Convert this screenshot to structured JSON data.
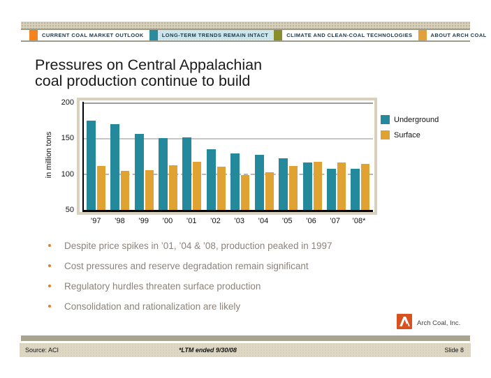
{
  "header": {
    "tabs": [
      {
        "label": "CURRENT COAL MARKET OUTLOOK",
        "color": "#F5821F",
        "active": false
      },
      {
        "label": "LONG-TERM TRENDS REMAIN INTACT",
        "color": "#2C8C9E",
        "active": true
      },
      {
        "label": "CLIMATE AND CLEAN-COAL TECHNOLOGIES",
        "color": "#8A8E2A",
        "active": false
      },
      {
        "label": "ABOUT ARCH COAL",
        "color": "#E2A23B",
        "active": false
      }
    ],
    "active_tab_bg": "#C9E3EA"
  },
  "title": {
    "line1": "Pressures on Central Appalachian",
    "line2": "coal production continue to build"
  },
  "chart_data": {
    "type": "bar",
    "title": "",
    "ylabel": "in million tons",
    "xlabel": "",
    "ylim": [
      50,
      200
    ],
    "yticks": [
      200,
      150,
      100,
      50
    ],
    "grid": {
      "solid_at": [
        200,
        150
      ],
      "dashed_at": [
        100
      ]
    },
    "legend_position": "right",
    "categories": [
      "’97",
      "’98",
      "’99",
      "’00",
      "’01",
      "’02",
      "’03",
      "’04",
      "’05",
      "’06",
      "’07",
      "’08*"
    ],
    "series": [
      {
        "name": "Underground",
        "color": "#24899B",
        "values": [
          175,
          170,
          156,
          150,
          151,
          135,
          129,
          127,
          122,
          116,
          108,
          108
        ]
      },
      {
        "name": "Surface",
        "color": "#E0A233",
        "values": [
          111,
          105,
          106,
          112,
          117,
          110,
          99,
          103,
          111,
          117,
          116,
          114
        ]
      }
    ]
  },
  "bullets": {
    "bullet_color": "#E87D2B",
    "text_color": "#8B8379",
    "items": [
      "Despite price spikes in ’01, ’04 & ’08, production peaked in 1997",
      "Cost pressures and reserve degradation remain significant",
      "Regulatory hurdles threaten surface production",
      "Consolidation and rationalization are likely"
    ]
  },
  "logo": {
    "company": "Arch Coal, Inc.",
    "color": "#D8511F"
  },
  "footer": {
    "source": "Source: ACI",
    "footnote": "*LTM ended 9/30/08",
    "slide_number": "Slide 8"
  }
}
